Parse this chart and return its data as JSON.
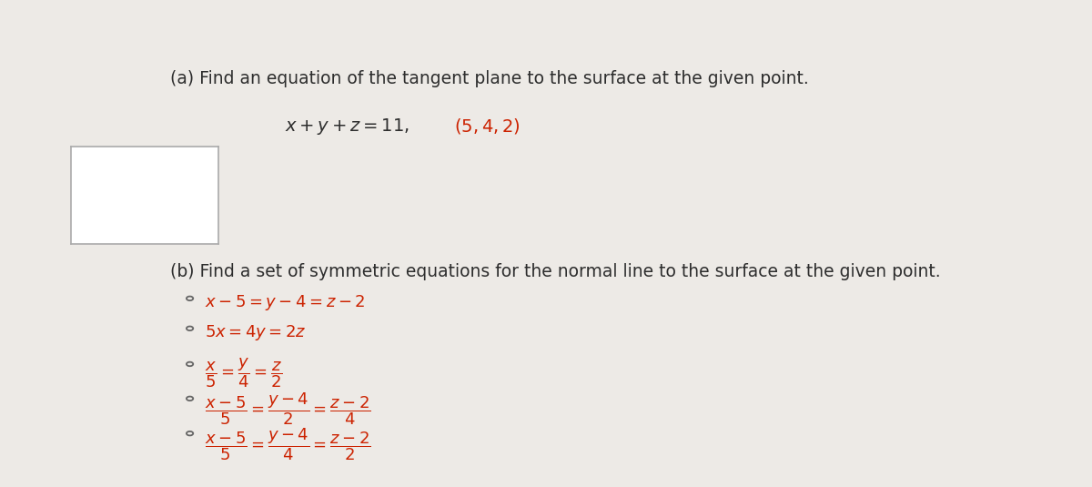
{
  "background_color": "#edeae6",
  "title_a": "(a) Find an equation of the tangent plane to the surface at the given point.",
  "title_b": "(b) Find a set of symmetric equations for the normal line to the surface at the given point.",
  "text_color": "#2d2d2d",
  "red_color": "#cc2200",
  "radio_color": "#666666"
}
